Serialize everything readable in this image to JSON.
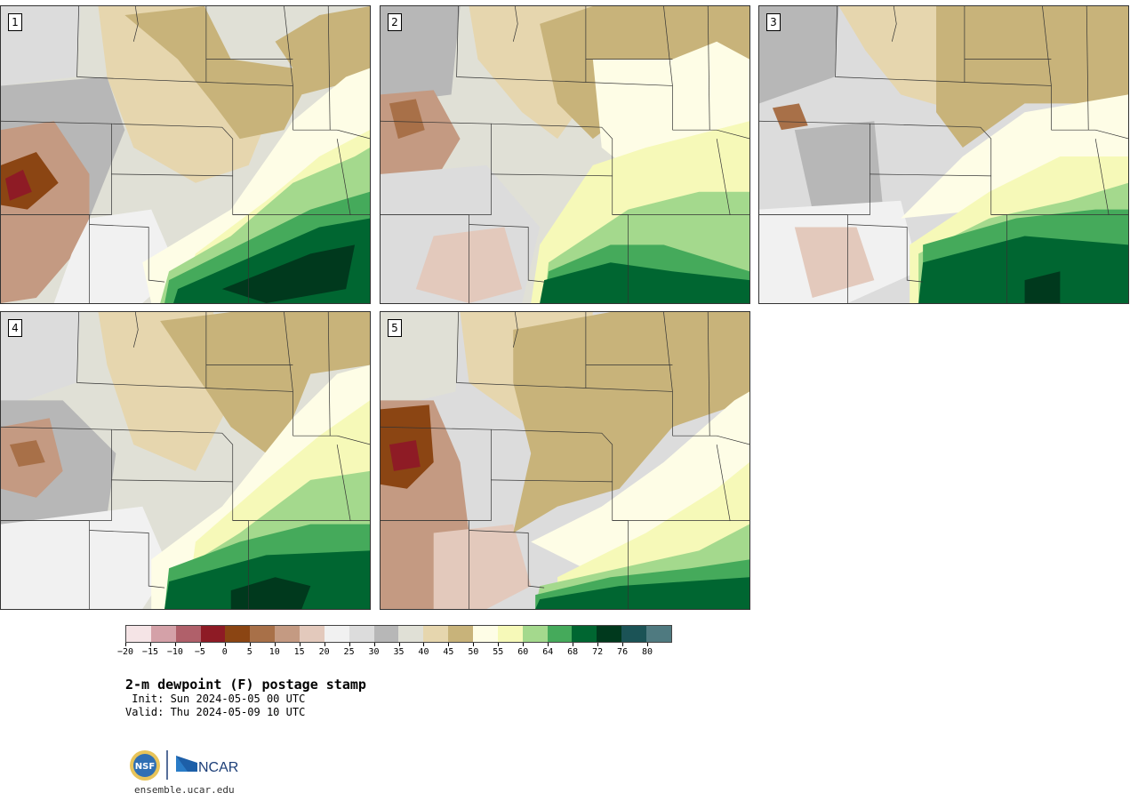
{
  "panels": [
    {
      "label": "1"
    },
    {
      "label": "2"
    },
    {
      "label": "3"
    },
    {
      "label": "4"
    },
    {
      "label": "5"
    }
  ],
  "legend": {
    "colors": [
      "#f5e4e6",
      "#d4a1a8",
      "#b0606a",
      "#8e1b25",
      "#8b4513",
      "#a87048",
      "#c49a82",
      "#e3c9bc",
      "#f1f1f1",
      "#dcdcdc",
      "#b7b7b7",
      "#e0e0d6",
      "#e6d6ae",
      "#c8b37a",
      "#fefde6",
      "#f6f9b8",
      "#a4d98d",
      "#45aa5b",
      "#006631",
      "#00391d",
      "#1b5356",
      "#4f7a80"
    ],
    "tick_labels": [
      "−20",
      "−15",
      "−10",
      "−5",
      "0",
      "5",
      "10",
      "15",
      "20",
      "25",
      "30",
      "35",
      "40",
      "45",
      "50",
      "55",
      "60",
      "64",
      "68",
      "72",
      "76",
      "80"
    ]
  },
  "title": "2-m dewpoint (F) postage stamp",
  "init": " Init: Sun 2024-05-05 00 UTC",
  "valid": "Valid: Thu 2024-05-09 10 UTC",
  "logo": {
    "nsf_text": "NSF",
    "ncar_text": "NCAR"
  },
  "site": "ensemble.ucar.edu"
}
